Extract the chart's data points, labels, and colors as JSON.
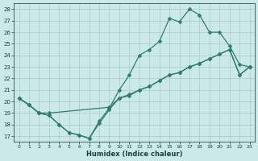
{
  "background_color": "#cce9e9",
  "grid_color": "#aacccc",
  "line_color": "#2e7d6e",
  "xlabel": "Humidex (Indice chaleur)",
  "xlim": [
    -0.5,
    23.5
  ],
  "ylim": [
    16.5,
    28.5
  ],
  "xticks": [
    0,
    1,
    2,
    3,
    4,
    5,
    6,
    7,
    8,
    9,
    10,
    11,
    12,
    13,
    14,
    15,
    16,
    17,
    18,
    19,
    20,
    21,
    22,
    23
  ],
  "yticks": [
    17,
    18,
    19,
    20,
    21,
    22,
    23,
    24,
    25,
    26,
    27,
    28
  ],
  "line1_x": [
    0,
    1,
    2,
    3,
    4,
    5,
    6,
    7,
    8,
    9,
    10,
    11,
    12,
    13,
    14,
    15,
    16,
    17,
    18,
    19,
    20,
    21,
    22,
    23
  ],
  "line1_y": [
    20.3,
    19.7,
    19.0,
    18.8,
    18.0,
    17.3,
    17.1,
    16.8,
    18.1,
    19.3,
    20.3,
    20.5,
    21.0,
    21.3,
    21.8,
    22.3,
    22.5,
    23.0,
    23.3,
    23.7,
    24.1,
    24.5,
    22.3,
    23.0
  ],
  "line2_x": [
    0,
    1,
    2,
    3,
    4,
    5,
    6,
    7,
    8,
    9,
    10,
    11,
    12,
    13,
    14,
    15,
    16,
    17,
    18,
    19,
    20,
    21,
    22,
    23
  ],
  "line2_y": [
    20.3,
    19.7,
    19.0,
    18.8,
    18.0,
    17.3,
    17.1,
    16.8,
    18.3,
    19.4,
    21.0,
    22.3,
    24.0,
    24.5,
    25.2,
    27.2,
    26.9,
    28.0,
    27.5,
    26.0,
    26.0,
    24.8,
    23.2,
    23.0
  ],
  "line3_x": [
    0,
    1,
    2,
    3,
    9,
    10,
    11,
    12,
    13,
    14,
    15,
    16,
    17,
    18,
    19,
    20,
    21,
    22,
    23
  ],
  "line3_y": [
    20.3,
    19.7,
    19.0,
    19.0,
    19.5,
    20.3,
    20.6,
    21.0,
    21.3,
    21.8,
    22.3,
    22.5,
    23.0,
    23.3,
    23.7,
    24.1,
    24.5,
    22.3,
    23.0
  ]
}
